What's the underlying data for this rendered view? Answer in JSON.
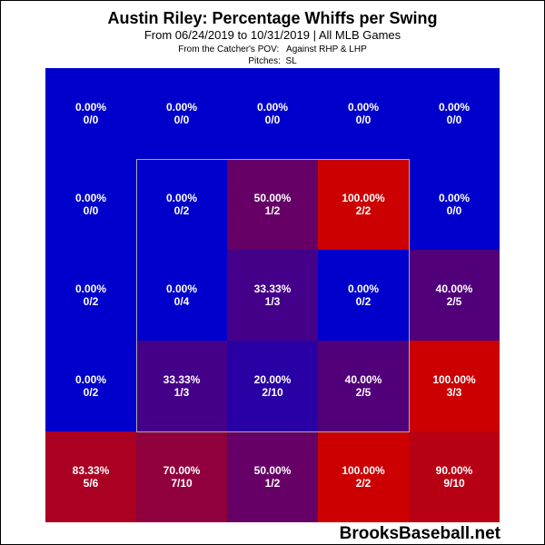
{
  "title": "Austin Riley: Percentage Whiffs per Swing",
  "subtitle": "From 06/24/2019 to 10/31/2019 | All MLB Games",
  "note_line1": "From the Catcher's POV:   Against RHP & LHP",
  "note_line2": "Pitches:  SL",
  "watermark": "BrooksBaseball.net",
  "colors": {
    "low": "#0000cc",
    "high": "#cc0000",
    "strike_zone_border": "#aaaaaa",
    "text": "#ffffff"
  },
  "chart_data": {
    "type": "heatmap",
    "title": "Austin Riley: Percentage Whiffs per Swing",
    "rows": 5,
    "cols": 5,
    "strike_zone": {
      "rows": [
        1,
        3
      ],
      "cols": [
        1,
        3
      ]
    },
    "cells": [
      [
        {
          "pct": "0.00%",
          "frac": "0/0",
          "value": 0.0
        },
        {
          "pct": "0.00%",
          "frac": "0/0",
          "value": 0.0
        },
        {
          "pct": "0.00%",
          "frac": "0/0",
          "value": 0.0
        },
        {
          "pct": "0.00%",
          "frac": "0/0",
          "value": 0.0
        },
        {
          "pct": "0.00%",
          "frac": "0/0",
          "value": 0.0
        }
      ],
      [
        {
          "pct": "0.00%",
          "frac": "0/0",
          "value": 0.0
        },
        {
          "pct": "0.00%",
          "frac": "0/2",
          "value": 0.0
        },
        {
          "pct": "50.00%",
          "frac": "1/2",
          "value": 50.0
        },
        {
          "pct": "100.00%",
          "frac": "2/2",
          "value": 100.0
        },
        {
          "pct": "0.00%",
          "frac": "0/0",
          "value": 0.0
        }
      ],
      [
        {
          "pct": "0.00%",
          "frac": "0/2",
          "value": 0.0
        },
        {
          "pct": "0.00%",
          "frac": "0/4",
          "value": 0.0
        },
        {
          "pct": "33.33%",
          "frac": "1/3",
          "value": 33.33
        },
        {
          "pct": "0.00%",
          "frac": "0/2",
          "value": 0.0
        },
        {
          "pct": "40.00%",
          "frac": "2/5",
          "value": 40.0
        }
      ],
      [
        {
          "pct": "0.00%",
          "frac": "0/2",
          "value": 0.0
        },
        {
          "pct": "33.33%",
          "frac": "1/3",
          "value": 33.33
        },
        {
          "pct": "20.00%",
          "frac": "2/10",
          "value": 20.0
        },
        {
          "pct": "40.00%",
          "frac": "2/5",
          "value": 40.0
        },
        {
          "pct": "100.00%",
          "frac": "3/3",
          "value": 100.0
        }
      ],
      [
        {
          "pct": "83.33%",
          "frac": "5/6",
          "value": 83.33
        },
        {
          "pct": "70.00%",
          "frac": "7/10",
          "value": 70.0
        },
        {
          "pct": "50.00%",
          "frac": "1/2",
          "value": 50.0
        },
        {
          "pct": "100.00%",
          "frac": "2/2",
          "value": 100.0
        },
        {
          "pct": "90.00%",
          "frac": "9/10",
          "value": 90.0
        }
      ]
    ]
  }
}
